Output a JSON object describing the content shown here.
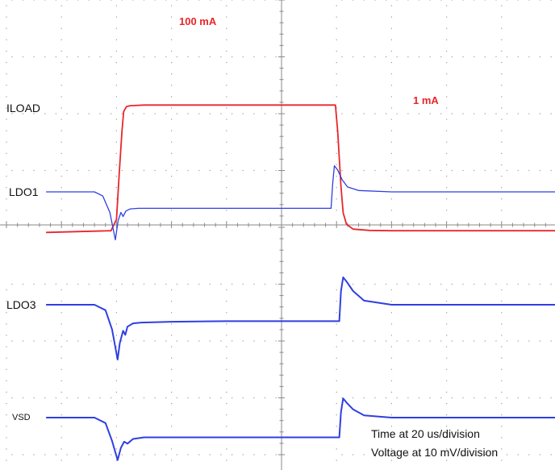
{
  "chart_data": {
    "type": "line",
    "title": "",
    "xlabel": "",
    "ylabel": "",
    "x_units_per_division": "20 us",
    "y_units_per_division": "10 mV",
    "grid": true,
    "x_divisions": 10,
    "y_divisions": 8,
    "notes": [
      "Time at 20 us/division",
      "Voltage at 10 mV/division"
    ],
    "series": [
      {
        "name": "ILOAD",
        "color": "#e8262b",
        "label_size": "normal",
        "level_labels": [
          {
            "text": "100 mA",
            "x_div": 3.2,
            "y_div": 0.0
          },
          {
            "text": "1 mA",
            "x_div": 7.5,
            "y_div": 1.0
          }
        ],
        "x": [
          0.72,
          1.9,
          2.0,
          2.05,
          2.1,
          2.13,
          2.18,
          2.25,
          2.5,
          3.0,
          4.0,
          5.0,
          5.98,
          6.02,
          6.08,
          6.12,
          6.18,
          6.3,
          6.6,
          7.0,
          8.0,
          9.0,
          10.0
        ],
        "y": [
          3.5,
          3.55,
          3.9,
          5.3,
          6.6,
          7.2,
          7.35,
          7.38,
          7.4,
          7.4,
          7.4,
          7.4,
          7.4,
          6.6,
          4.9,
          4.1,
          3.75,
          3.6,
          3.56,
          3.55,
          3.55,
          3.55,
          3.55
        ]
      },
      {
        "name": "LDO1",
        "color": "#2f3fe0",
        "label_size": "normal",
        "x": [
          0.72,
          1.6,
          1.75,
          1.88,
          1.98,
          2.03,
          2.08,
          2.12,
          2.17,
          2.25,
          2.4,
          3.0,
          4.0,
          5.0,
          5.9,
          5.93,
          5.96,
          6.02,
          6.1,
          6.2,
          6.4,
          7.0,
          8.0,
          9.0,
          10.0
        ],
        "y": [
          0.0,
          0.0,
          -0.15,
          -0.75,
          -1.75,
          -1.05,
          -0.75,
          -0.9,
          -0.7,
          -0.62,
          -0.6,
          -0.6,
          -0.6,
          -0.6,
          -0.6,
          0.3,
          0.95,
          0.8,
          0.45,
          0.18,
          0.05,
          0.0,
          0.0,
          0.0,
          0.0
        ]
      },
      {
        "name": "LDO3",
        "color": "#2f3fe0",
        "label_size": "normal",
        "x": [
          0.72,
          1.6,
          1.8,
          1.92,
          2.02,
          2.06,
          2.12,
          2.16,
          2.2,
          2.3,
          2.45,
          3.0,
          4.0,
          5.0,
          6.05,
          6.08,
          6.12,
          6.18,
          6.3,
          6.5,
          7.0,
          8.0,
          9.0,
          10.0
        ],
        "y": [
          0.0,
          0.0,
          -0.2,
          -0.9,
          -2.0,
          -1.4,
          -0.95,
          -1.1,
          -0.8,
          -0.68,
          -0.65,
          -0.62,
          -0.6,
          -0.6,
          -0.6,
          0.5,
          1.0,
          0.85,
          0.5,
          0.15,
          0.0,
          0.0,
          0.0,
          0.0
        ]
      },
      {
        "name": "VSD",
        "color": "#2f3fe0",
        "label_size": "small",
        "x": [
          0.72,
          1.6,
          1.8,
          1.92,
          2.02,
          2.08,
          2.14,
          2.2,
          2.3,
          2.5,
          3.0,
          4.0,
          5.0,
          6.05,
          6.08,
          6.12,
          6.18,
          6.3,
          6.5,
          7.0,
          8.0,
          9.0,
          10.0
        ],
        "y": [
          0.0,
          0.0,
          -0.2,
          -0.85,
          -1.55,
          -1.1,
          -0.88,
          -0.95,
          -0.78,
          -0.72,
          -0.72,
          -0.72,
          -0.72,
          -0.72,
          0.2,
          0.7,
          0.55,
          0.3,
          0.08,
          0.0,
          0.0,
          0.0,
          0.0
        ]
      }
    ]
  }
}
